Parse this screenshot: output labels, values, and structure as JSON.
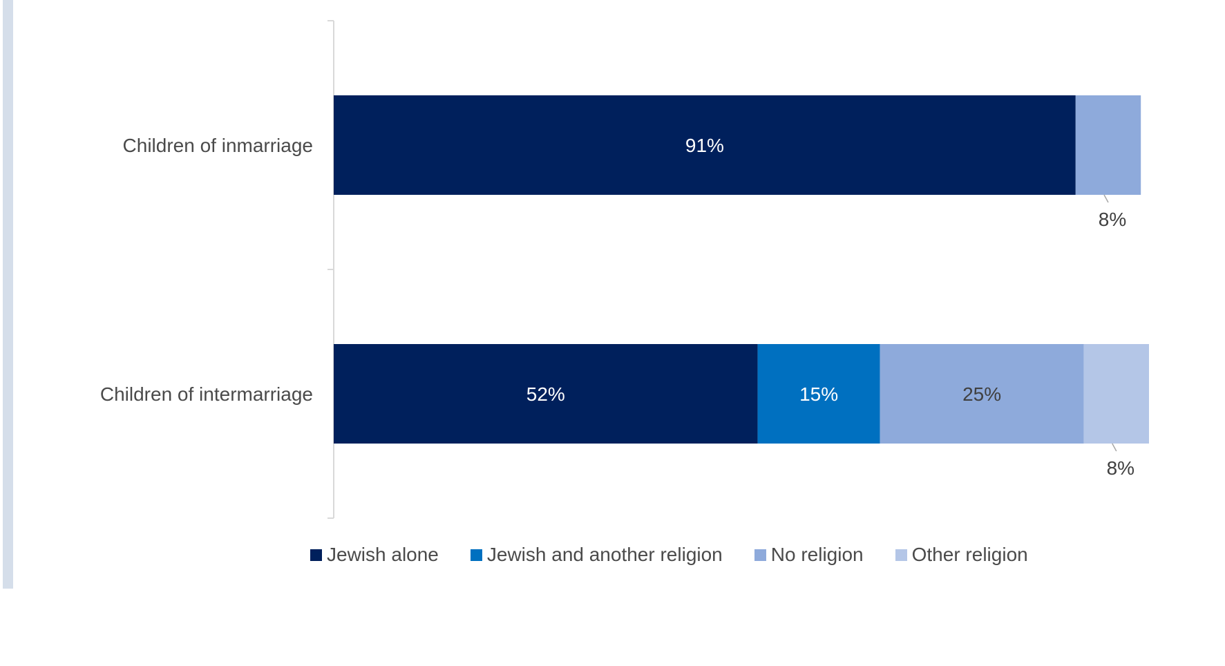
{
  "chart_data": {
    "type": "bar",
    "orientation": "horizontal",
    "stacked": true,
    "categories": [
      "Children of inmarriage",
      "Children of intermarriage"
    ],
    "series": [
      {
        "name": "Jewish alone",
        "color": "#00205c",
        "values": [
          91,
          52
        ],
        "labels": [
          "91%",
          "52%"
        ]
      },
      {
        "name": "Jewish and another religion",
        "color": "#0070c0",
        "values": [
          0,
          15
        ],
        "labels": [
          "",
          "15%"
        ]
      },
      {
        "name": "No religion",
        "color": "#8eaadb",
        "values": [
          8,
          25
        ],
        "labels": [
          "8%",
          "25%"
        ]
      },
      {
        "name": "Other religion",
        "color": "#b4c6e7",
        "values": [
          0,
          8
        ],
        "labels": [
          "",
          "8%"
        ]
      }
    ],
    "xlim": [
      0,
      100
    ],
    "legend_position": "bottom",
    "grid": false
  }
}
